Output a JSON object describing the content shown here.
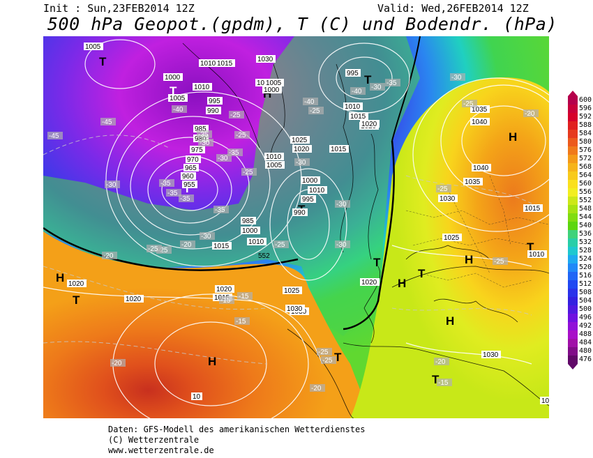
{
  "header": {
    "init": "Init : Sun,23FEB2014 12Z",
    "valid": "Valid: Wed,26FEB2014 12Z",
    "title": "500 hPa Geopot.(gpdm), T (C) und Bodendr. (hPa)"
  },
  "pressure_systems": [
    {
      "label": "T",
      "where": "greenland-west"
    },
    {
      "label": "T",
      "where": "labrador-sea-north"
    },
    {
      "label": "H",
      "where": "iceland"
    },
    {
      "label": "T",
      "where": "norwegian-sea"
    },
    {
      "label": "T",
      "where": "north-atlantic-low"
    },
    {
      "label": "T",
      "where": "mid-atlantic"
    },
    {
      "label": "H",
      "where": "west-atlantic"
    },
    {
      "label": "T",
      "where": "west-atlantic-south"
    },
    {
      "label": "H",
      "where": "azores"
    },
    {
      "label": "H",
      "where": "russia"
    },
    {
      "label": "T",
      "where": "east-europe"
    },
    {
      "label": "H",
      "where": "central-europe"
    },
    {
      "label": "T",
      "where": "balkans"
    },
    {
      "label": "H",
      "where": "east-europe-2"
    },
    {
      "label": "H",
      "where": "mediterranean"
    },
    {
      "label": "T",
      "where": "north-africa"
    },
    {
      "label": "T",
      "where": "middle-east"
    },
    {
      "label": "T",
      "where": "gulf-of-biscay"
    }
  ],
  "isobar_labels": [
    "1005",
    "1000",
    "1010",
    "1005",
    "995",
    "990",
    "985",
    "980",
    "975",
    "970",
    "965",
    "960",
    "955",
    "1010",
    "1015",
    "1030",
    "1035",
    "1005",
    "1000",
    "995",
    "1010",
    "1015",
    "1020",
    "1025",
    "1020",
    "1015",
    "1010",
    "1005",
    "1000",
    "1010",
    "995",
    "990",
    "985",
    "1000",
    "1010",
    "1015",
    "1020",
    "1025",
    "1030",
    "1020",
    "1015",
    "1020",
    "1030",
    "1035",
    "1040",
    "1040",
    "1035",
    "1030",
    "1025",
    "1020",
    "1015",
    "1020",
    "1030",
    "10",
    "1005",
    "1010"
  ],
  "temp_labels": [
    "-45",
    "-45",
    "-40",
    "-35",
    "-25",
    "-25",
    "-30",
    "-40",
    "-35",
    "-30",
    "-25",
    "-30",
    "-30",
    "-25",
    "-20",
    "-25",
    "-20",
    "-15",
    "-15",
    "-15",
    "-20",
    "-25",
    "-25",
    "-20",
    "-20",
    "-15",
    "-30",
    "-25",
    "-35",
    "-40",
    "-30",
    "-35",
    "-35",
    "-35",
    "-35",
    "-30",
    "-25",
    "-25",
    "-20",
    "-25",
    "-25",
    "-30",
    "-30"
  ],
  "height_label_552": "552",
  "legend": {
    "values": [
      "600",
      "596",
      "592",
      "588",
      "584",
      "580",
      "576",
      "572",
      "568",
      "564",
      "560",
      "556",
      "552",
      "548",
      "544",
      "540",
      "536",
      "532",
      "528",
      "524",
      "520",
      "516",
      "512",
      "508",
      "504",
      "500",
      "496",
      "492",
      "488",
      "484",
      "480",
      "476"
    ],
    "colors": [
      "#b5004b",
      "#c8003a",
      "#d6002a",
      "#e02020",
      "#e63a1e",
      "#ec5a1c",
      "#f07a1a",
      "#f49a18",
      "#f6b41a",
      "#f8ca1c",
      "#fae01e",
      "#f2ee20",
      "#cce818",
      "#a6e212",
      "#80dc10",
      "#5cd60e",
      "#3ed27a",
      "#28cea8",
      "#1ec8d0",
      "#1eaaf0",
      "#2088f8",
      "#2066f6",
      "#2048f2",
      "#2a32ea",
      "#3420e0",
      "#5018e0",
      "#7010e0",
      "#9010d8",
      "#a810c8",
      "#a010a8",
      "#800c88",
      "#600868"
    ]
  },
  "footer": {
    "line1": "Daten: GFS-Modell des amerikanischen Wetterdienstes",
    "line2": "(C) Wetterzentrale",
    "line3": "www.wetterzentrale.de"
  }
}
